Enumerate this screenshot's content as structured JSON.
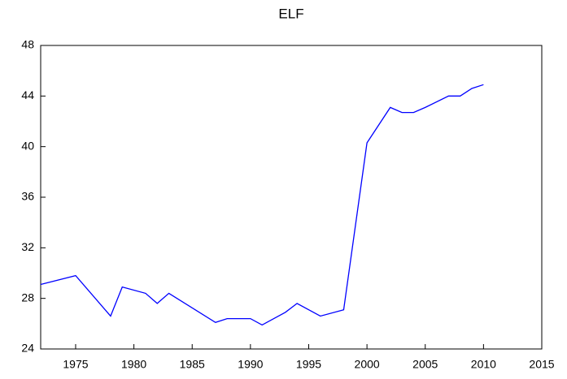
{
  "chart_data": {
    "type": "line",
    "title": "ELF",
    "x": [
      1972,
      1975,
      1978,
      1979,
      1981,
      1982,
      1983,
      1987,
      1988,
      1990,
      1991,
      1993,
      1994,
      1996,
      1998,
      2000,
      2002,
      2003,
      2004,
      2005,
      2007,
      2008,
      2009,
      2010
    ],
    "series": [
      {
        "name": "ELF",
        "color": "#0000ff",
        "values": [
          29.1,
          29.8,
          26.6,
          28.9,
          28.4,
          27.6,
          28.4,
          26.1,
          26.4,
          26.4,
          25.9,
          26.9,
          27.6,
          26.6,
          27.1,
          40.3,
          43.1,
          42.7,
          42.7,
          43.1,
          44.0,
          44.0,
          44.6,
          44.9
        ]
      }
    ],
    "xlim": [
      1972,
      2015
    ],
    "xticks": [
      1975,
      1980,
      1985,
      1990,
      1995,
      2000,
      2005,
      2010,
      2015
    ],
    "ylim": [
      24,
      48
    ],
    "yticks": [
      24,
      28,
      32,
      36,
      40,
      44,
      48
    ],
    "grid": false
  }
}
